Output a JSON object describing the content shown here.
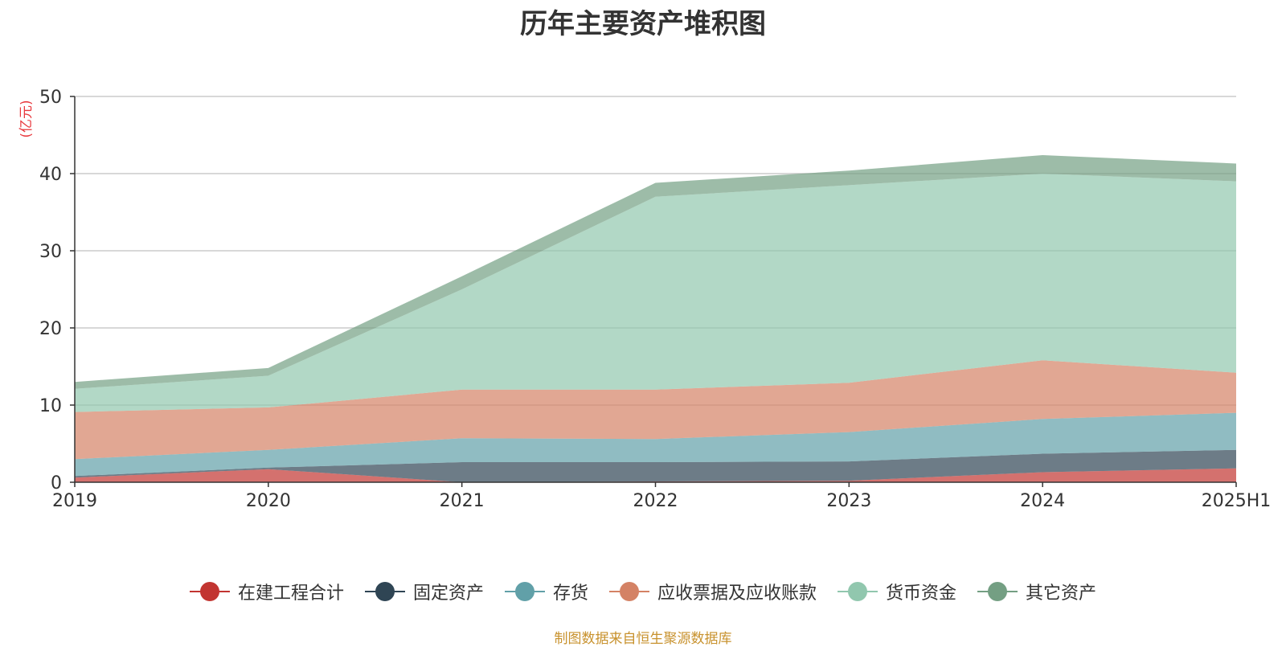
{
  "chart_data": {
    "type": "area",
    "stacked": true,
    "title": "历年主要资产堆积图",
    "ylabel": "(亿元)",
    "xlabel": "",
    "categories": [
      "2019",
      "2020",
      "2021",
      "2022",
      "2023",
      "2024",
      "2025H1"
    ],
    "ylim": [
      0,
      50
    ],
    "yticks": [
      0,
      10,
      20,
      30,
      40,
      50
    ],
    "grid": true,
    "legend_position": "bottom",
    "series": [
      {
        "name": "在建工程合计",
        "color": "#c23531",
        "values": [
          0.6,
          1.7,
          0.0,
          0.1,
          0.2,
          1.3,
          1.8
        ]
      },
      {
        "name": "固定资产",
        "color": "#2f4554",
        "values": [
          0.2,
          0.2,
          2.6,
          2.5,
          2.5,
          2.4,
          2.4
        ]
      },
      {
        "name": "存货",
        "color": "#61a0a8",
        "values": [
          2.2,
          2.3,
          3.1,
          3.0,
          3.8,
          4.5,
          4.8
        ]
      },
      {
        "name": "应收票据及应收账款",
        "color": "#d48265",
        "values": [
          6.1,
          5.5,
          6.3,
          6.4,
          6.4,
          7.6,
          5.2
        ]
      },
      {
        "name": "货币资金",
        "color": "#91c7ae",
        "values": [
          3.0,
          4.1,
          13.0,
          25.0,
          25.6,
          24.2,
          24.8
        ]
      },
      {
        "name": "其它资产",
        "color": "#749f83",
        "values": [
          0.9,
          1.0,
          1.7,
          1.8,
          1.9,
          2.4,
          2.3
        ]
      }
    ]
  },
  "source_note": "制图数据来自恒生聚源数据库"
}
